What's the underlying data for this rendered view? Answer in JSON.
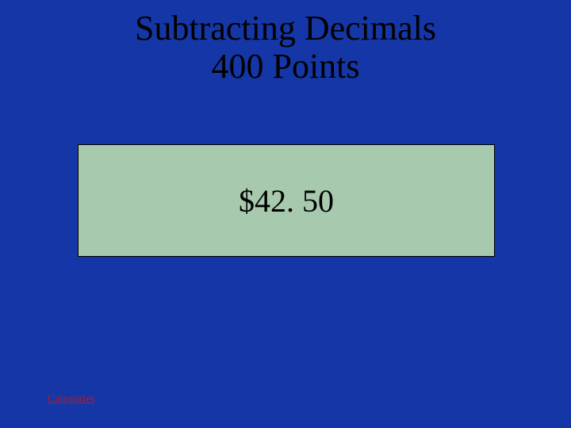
{
  "slide": {
    "background_color": "#1436a6",
    "title_line1": "Subtracting Decimals",
    "title_line2": "400 Points",
    "title_color": "#000000",
    "title_fontsize": 44,
    "answer_box": {
      "background_color": "#a7caaf",
      "border_color": "#000000",
      "text": "$42. 50",
      "text_color": "#000000",
      "text_fontsize": 40
    },
    "link": {
      "label": "Categories",
      "color": "#b01e2e"
    }
  }
}
